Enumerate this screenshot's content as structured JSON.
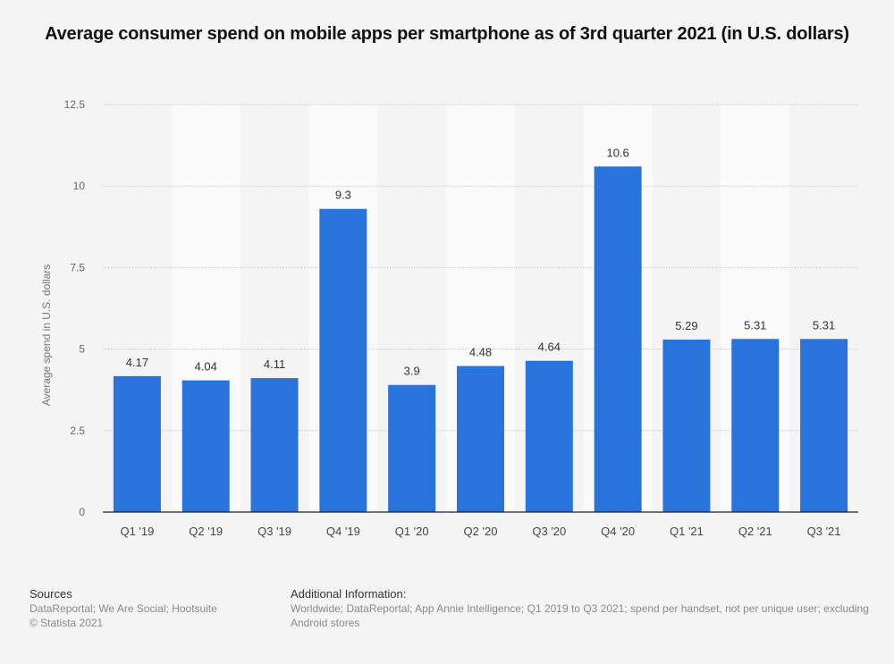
{
  "chart_data": {
    "type": "bar",
    "title": "Average consumer spend on mobile apps per smartphone as of 3rd quarter 2021 (in U.S. dollars)",
    "xlabel": "",
    "ylabel": "Average spend in U.S. dollars",
    "ylim": [
      0,
      12.5
    ],
    "yticks": [
      0,
      2.5,
      5,
      7.5,
      10,
      12.5
    ],
    "ytick_labels": [
      "0",
      "2.5",
      "5",
      "7.5",
      "10",
      "12.5"
    ],
    "grid": true,
    "categories": [
      "Q1 '19",
      "Q2 '19",
      "Q3 '19",
      "Q4 '19",
      "Q1 '20",
      "Q2 '20",
      "Q3 '20",
      "Q4 '20",
      "Q1 '21",
      "Q2 '21",
      "Q3 '21"
    ],
    "values": [
      4.17,
      4.04,
      4.11,
      9.3,
      3.9,
      4.48,
      4.64,
      10.6,
      5.29,
      5.31,
      5.31
    ],
    "value_labels": [
      "4.17",
      "4.04",
      "4.11",
      "9.3",
      "3.9",
      "4.48",
      "4.64",
      "10.6",
      "5.29",
      "5.31",
      "5.31"
    ],
    "bar_color": "#2874dc"
  },
  "footer": {
    "sources_heading": "Sources",
    "sources_text": "DataReportal; We Are Social; Hootsuite",
    "copyright": "© Statista 2021",
    "additional_heading": "Additional Information:",
    "additional_line1": "Worldwide; DataReportal; App Annie Intelligence; Q1 2019 to Q3 2021; spend per handset, not per unique user; excluding ",
    "additional_line2": "Android stores"
  }
}
